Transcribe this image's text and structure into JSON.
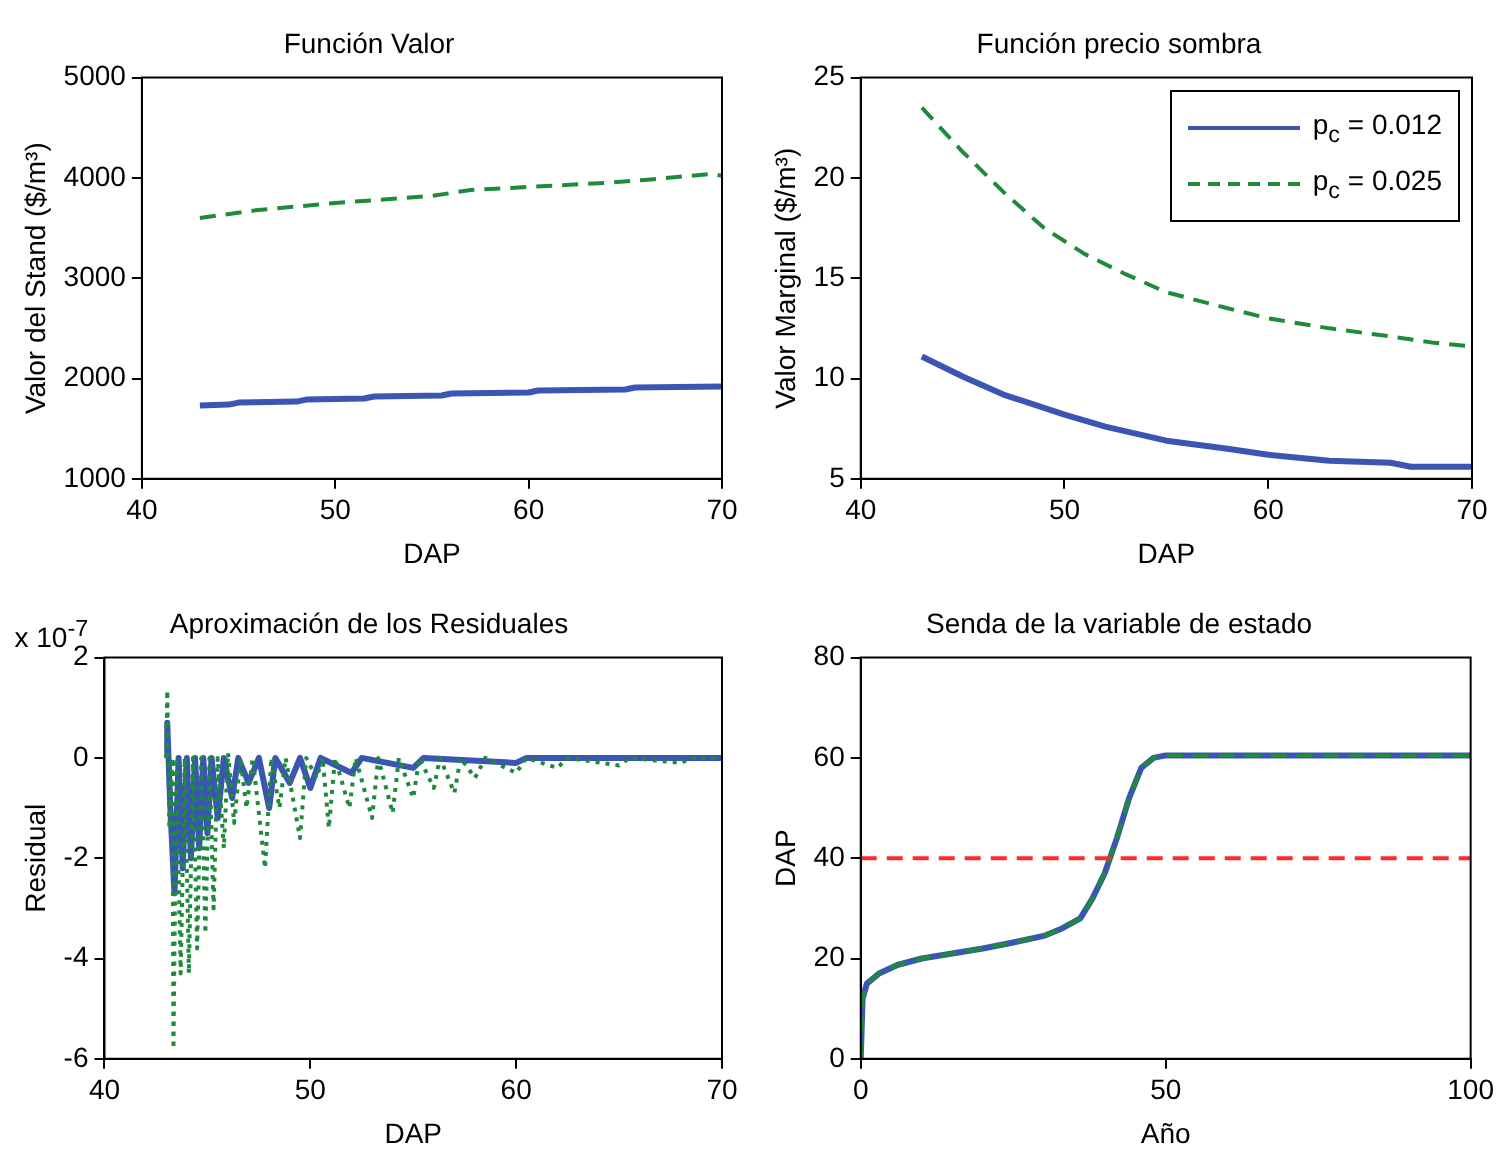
{
  "chart_data": [
    {
      "type": "line",
      "title": "Función Valor",
      "xlabel": "DAP",
      "ylabel": "Valor del Stand ($/m³)",
      "xlim": [
        40,
        70
      ],
      "xticks": [
        40,
        50,
        60,
        70
      ],
      "ylim": [
        1000,
        5000
      ],
      "yticks": [
        1000,
        2000,
        3000,
        4000,
        5000
      ],
      "grid": false,
      "legend": false,
      "marker": "none",
      "series": [
        {
          "color": "#3a55b4",
          "line_style": "solid",
          "x": [
            43,
            44.5,
            45,
            48,
            48.5,
            51.5,
            52,
            55.5,
            56,
            60,
            60.5,
            65,
            65.5,
            70
          ],
          "values": [
            1730,
            1740,
            1760,
            1770,
            1790,
            1800,
            1820,
            1830,
            1850,
            1860,
            1880,
            1890,
            1910,
            1920
          ]
        },
        {
          "color": "#1f8a3c",
          "line_style": "dashed",
          "x": [
            43,
            46,
            50,
            55,
            57,
            60,
            64,
            66,
            69.5,
            70
          ],
          "values": [
            3600,
            3680,
            3750,
            3820,
            3880,
            3910,
            3950,
            3980,
            4040,
            4020
          ]
        }
      ]
    },
    {
      "type": "line",
      "title": "Función precio sombra",
      "xlabel": "DAP",
      "ylabel": "Valor Marginal ($/m³)",
      "xlim": [
        40,
        70
      ],
      "xticks": [
        40,
        50,
        60,
        70
      ],
      "ylim": [
        5,
        25
      ],
      "yticks": [
        5,
        10,
        15,
        20,
        25
      ],
      "grid": false,
      "legend": "top right",
      "marker": "none",
      "series": [
        {
          "name": "p$_{c}$ = 0.012",
          "color": "#3a55b4",
          "line_style": "solid",
          "x": [
            43,
            45,
            47,
            50,
            52,
            55,
            58,
            60,
            63,
            66,
            67,
            70
          ],
          "values": [
            11.1,
            10.1,
            9.2,
            8.2,
            7.6,
            6.9,
            6.5,
            6.2,
            5.9,
            5.8,
            5.6,
            5.6
          ]
        },
        {
          "name": "p$_{c}$ = 0.025",
          "color": "#1f8a3c",
          "line_style": "dashed",
          "x": [
            43,
            45,
            47,
            49,
            51,
            53,
            55,
            58,
            60,
            63,
            66,
            68,
            70
          ],
          "values": [
            23.5,
            21.3,
            19.3,
            17.5,
            16.2,
            15.2,
            14.3,
            13.5,
            13.0,
            12.5,
            12.1,
            11.8,
            11.6
          ]
        }
      ]
    },
    {
      "type": "line",
      "title": "Aproximación de los Residuales",
      "xlabel": "DAP",
      "ylabel": "Residual",
      "annotations": [
        "x 10$^{-7}$"
      ],
      "xlim": [
        40,
        70
      ],
      "xticks": [
        40,
        50,
        60,
        70
      ],
      "ylim": [
        -6,
        2
      ],
      "yticks": [
        -6,
        -4,
        -2,
        0,
        2
      ],
      "grid": false,
      "legend": false,
      "marker": "none",
      "series": [
        {
          "color": "#3a55b4",
          "line_style": "solid",
          "x": [
            43,
            43.05,
            43.2,
            43.4,
            43.6,
            43.8,
            44,
            44.2,
            44.4,
            44.6,
            44.8,
            45,
            45.2,
            45.5,
            45.8,
            46.2,
            46.5,
            47,
            47.5,
            48,
            48.3,
            49,
            49.5,
            50,
            50.5,
            52,
            52.5,
            55,
            55.5,
            60,
            60.5,
            70
          ],
          "values": [
            0,
            0.7,
            -1.0,
            -2.7,
            0,
            -2.2,
            0,
            -2.0,
            0,
            -1.8,
            0,
            -1.5,
            0,
            -1.2,
            0,
            -0.8,
            0,
            -0.5,
            0,
            -1.0,
            0,
            -0.5,
            0,
            -0.6,
            0,
            -0.3,
            0,
            -0.2,
            0,
            -0.1,
            0,
            0
          ]
        },
        {
          "color": "#1f8a3c",
          "line_style": "dotted",
          "x": [
            43,
            43.05,
            43.15,
            43.3,
            43.35,
            43.5,
            43.7,
            43.9,
            44.1,
            44.3,
            44.5,
            44.7,
            44.9,
            45.1,
            45.3,
            45.5,
            45.8,
            46,
            46.3,
            46.6,
            46.9,
            47.2,
            47.8,
            48.1,
            48.5,
            48.8,
            49.5,
            49.8,
            50.3,
            50.6,
            50.9,
            51.2,
            51.9,
            52.2,
            53,
            53.3,
            54,
            54.3,
            55,
            55.3,
            56,
            56.3,
            57,
            57.3,
            58,
            58.5,
            60,
            60.5,
            62,
            62.5,
            65,
            65.5,
            68,
            68.5,
            70
          ],
          "values": [
            0,
            1.35,
            -1.4,
            0,
            -5.8,
            0,
            -4.3,
            0,
            -4.3,
            0,
            -3.8,
            0,
            -3.5,
            0,
            -3.0,
            0,
            -1.8,
            0.1,
            -1.3,
            0,
            -1.0,
            0,
            -2.2,
            0,
            -1.0,
            0,
            -1.6,
            0,
            -0.4,
            0,
            -1.4,
            0,
            -1.0,
            0,
            -1.2,
            0,
            -1.1,
            0,
            -0.8,
            0,
            -0.6,
            0,
            -0.7,
            0,
            -0.4,
            0,
            -0.3,
            0,
            -0.2,
            0,
            -0.15,
            0,
            -0.1,
            0,
            0
          ]
        }
      ]
    },
    {
      "type": "line",
      "title": "Senda de la variable de estado",
      "xlabel": "Año",
      "ylabel": "DAP",
      "xlim": [
        0,
        100
      ],
      "xticks": [
        0,
        50,
        100
      ],
      "ylim": [
        0,
        80
      ],
      "yticks": [
        0,
        20,
        40,
        60,
        80
      ],
      "grid": false,
      "legend": false,
      "marker": "none",
      "ref_lines": [
        {
          "axis": "y",
          "value": 40,
          "color": "#ff2a2a",
          "line_style": "dashed"
        }
      ],
      "series": [
        {
          "color": "#3a55b4",
          "line_style": "solid",
          "x": [
            0,
            0.3,
            1,
            3,
            6,
            10,
            15,
            20,
            25,
            30,
            33,
            36,
            38,
            40,
            42,
            44,
            46,
            48,
            50,
            100
          ],
          "values": [
            0,
            12,
            15,
            17,
            18.7,
            20,
            21,
            22,
            23.2,
            24.5,
            26,
            28,
            32,
            37,
            44,
            52,
            58,
            60,
            60.5,
            60.5
          ]
        },
        {
          "color": "#1f8a3c",
          "line_style": "dashed",
          "x": [
            0,
            0.3,
            1,
            3,
            6,
            10,
            15,
            20,
            25,
            30,
            33,
            36,
            38,
            40,
            42,
            44,
            46,
            48,
            50,
            100
          ],
          "values": [
            0,
            12,
            15,
            17,
            18.7,
            20,
            21,
            22,
            23.2,
            24.5,
            26,
            28,
            32,
            37,
            44,
            52,
            58,
            60,
            60.5,
            60.5
          ]
        }
      ]
    }
  ]
}
